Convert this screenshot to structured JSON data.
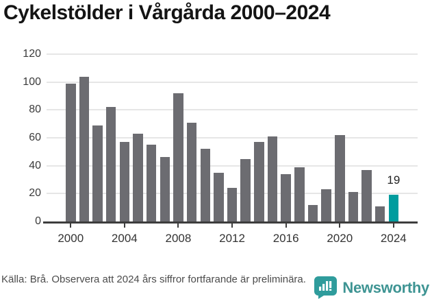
{
  "title": "Cykelstölder i Vårgårda 2000–2024",
  "chart_data": {
    "type": "bar",
    "title": "Cykelstölder i Vårgårda 2000–2024",
    "categories": [
      2000,
      2001,
      2002,
      2003,
      2004,
      2005,
      2006,
      2007,
      2008,
      2009,
      2010,
      2011,
      2012,
      2013,
      2014,
      2015,
      2016,
      2017,
      2018,
      2019,
      2020,
      2021,
      2022,
      2023,
      2024
    ],
    "values": [
      99,
      104,
      69,
      82,
      57,
      63,
      55,
      46,
      92,
      71,
      52,
      35,
      24,
      45,
      57,
      61,
      34,
      39,
      12,
      23,
      62,
      21,
      37,
      11,
      19
    ],
    "xlabel": "",
    "ylabel": "",
    "ylim": [
      0,
      120
    ],
    "ytick_step": 20,
    "yticks": [
      0,
      20,
      40,
      60,
      80,
      100,
      120
    ],
    "xticks": [
      2000,
      2004,
      2008,
      2012,
      2016,
      2020,
      2024
    ],
    "grid": true,
    "legend": "none",
    "bar_color": "#6c6c71",
    "highlight_color": "#009c9e",
    "highlight_index": 24,
    "annotation": {
      "index": 24,
      "text": "19"
    }
  },
  "footer": {
    "source_text": "Källa: Brå. Observera att 2024 års siffror fortfarande är preliminära.",
    "brand": "Newsworthy"
  },
  "colors": {
    "title_text": "#141414",
    "axis_line": "#3d3d3d",
    "gridline": "#e6e6e6",
    "tick_text": "#333333",
    "source_text": "#4b4b4b",
    "brand_teal": "#3e9493",
    "logo_icon_teal": "#2f9c9c"
  }
}
